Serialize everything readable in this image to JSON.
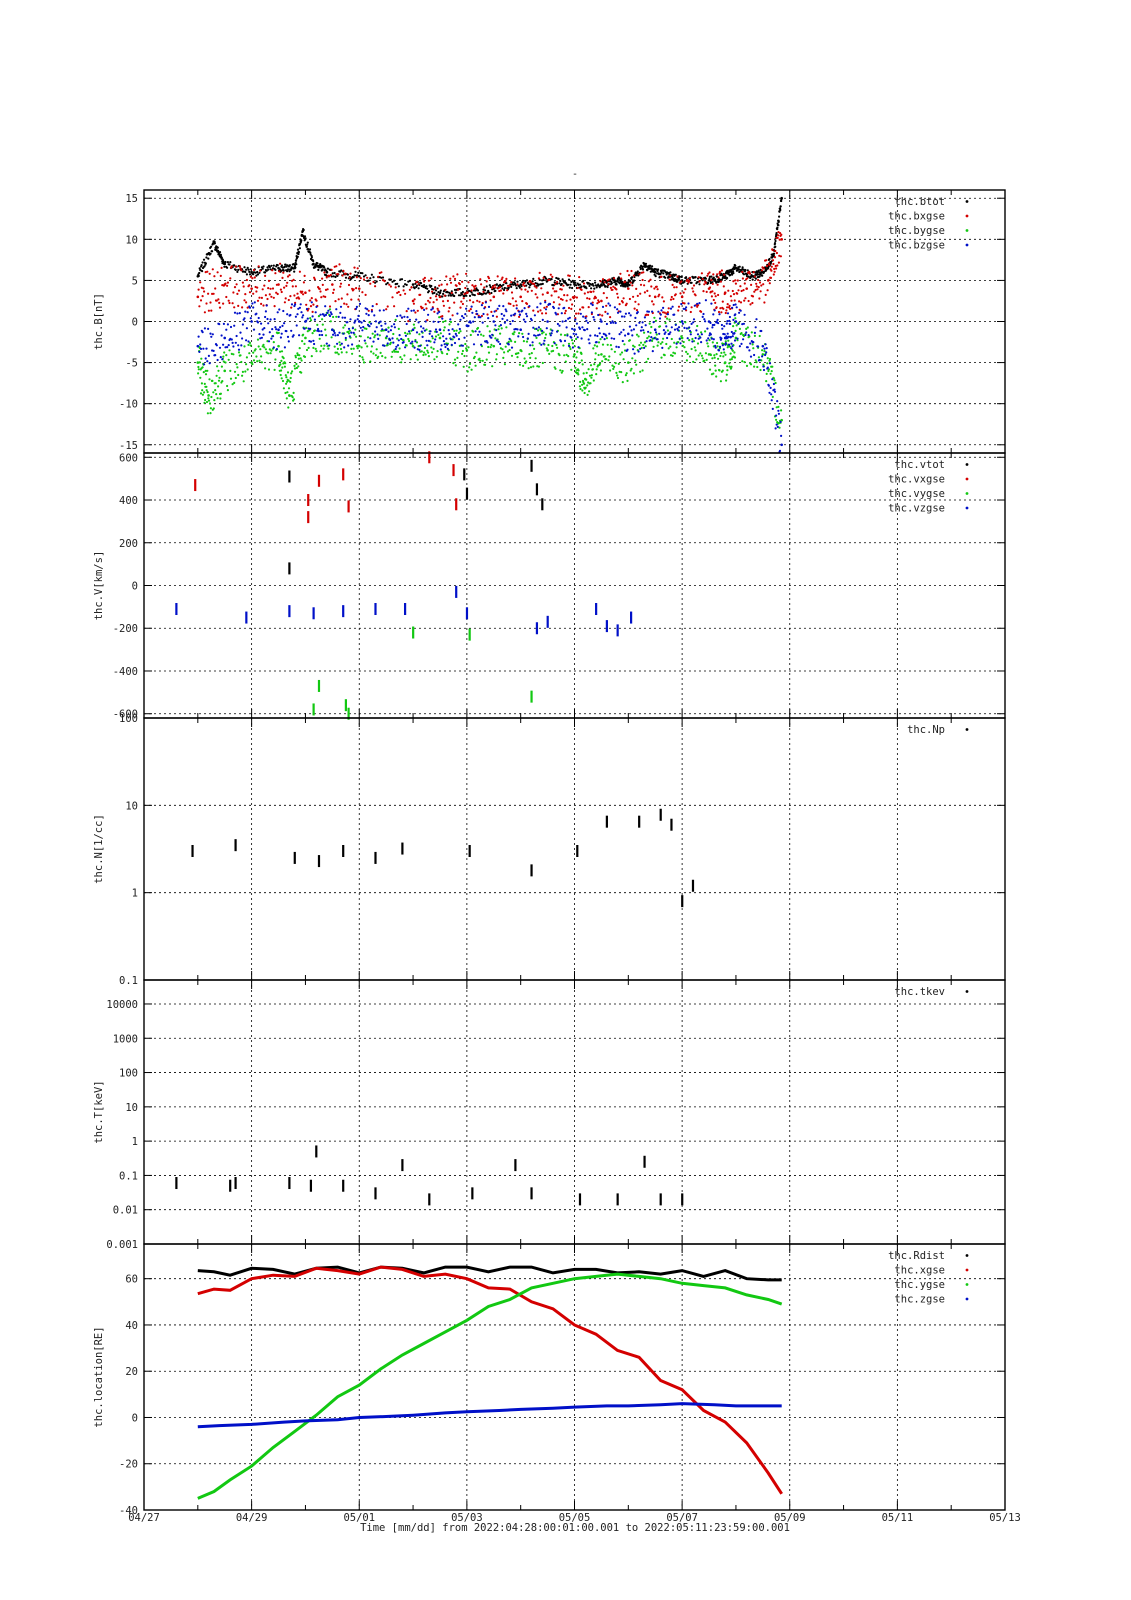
{
  "page": {
    "title": "-"
  },
  "colors": {
    "black": "#000000",
    "red": "#d40000",
    "green": "#12c812",
    "blue": "#0010c8",
    "grid": "#000000"
  },
  "x_axis": {
    "label": "Time [mm/dd]  from 2022:04:28:00:01:00.001  to  2022:05:11:23:59:00.001",
    "ticks": [
      "04/27",
      "04/29",
      "05/01",
      "05/03",
      "05/05",
      "05/07",
      "05/09",
      "05/11",
      "05/13"
    ]
  },
  "chart_data": [
    {
      "type": "scatter",
      "ylabel": "thc.B[nT]",
      "ylim": [
        -16,
        16
      ],
      "yticks": [
        "15",
        "10",
        "5",
        "0",
        "-5",
        "-10",
        "-15"
      ],
      "yticks_values": [
        15,
        10,
        5,
        0,
        -5,
        -10,
        -15
      ],
      "series": [
        {
          "name": "thc.btot",
          "color": "black",
          "x": [
            1.0,
            1.3,
            1.5,
            2.0,
            2.5,
            2.8,
            2.95,
            3.15,
            3.4,
            4.0,
            5.0,
            5.5,
            6.0,
            6.5,
            7.0,
            7.5,
            8.0,
            8.5,
            8.8,
            9.0,
            9.3,
            9.5,
            9.8,
            10.0,
            10.5,
            10.8,
            11.0,
            11.3,
            11.5,
            11.7,
            11.85
          ],
          "y": [
            5.5,
            9.5,
            7,
            6,
            6.5,
            6.5,
            11,
            7,
            6,
            5.5,
            4.5,
            3.5,
            3.5,
            4,
            4.5,
            5,
            4.5,
            4.5,
            5,
            4.5,
            7,
            6,
            5.5,
            5,
            5,
            5.5,
            6.5,
            5.5,
            6,
            8,
            15
          ]
        },
        {
          "name": "thc.bxgse",
          "color": "red",
          "x": [
            1.0,
            1.5,
            2.0,
            2.5,
            3.0,
            3.5,
            4.0,
            5.0,
            5.5,
            6.0,
            6.5,
            7.0,
            7.5,
            8.0,
            8.5,
            9.0,
            9.5,
            10.0,
            10.5,
            10.8,
            11.2,
            11.6,
            11.85
          ],
          "y": [
            3,
            4.5,
            4,
            4.5,
            3.5,
            4.5,
            4,
            2.5,
            3,
            3.5,
            3,
            3,
            3.5,
            3,
            2.5,
            4,
            3,
            3,
            4,
            3.5,
            4,
            5,
            10
          ]
        },
        {
          "name": "thc.bygse",
          "color": "green",
          "x": [
            1.0,
            1.2,
            1.5,
            2.0,
            2.5,
            2.7,
            3.0,
            3.5,
            4.0,
            4.5,
            5.0,
            5.5,
            6.0,
            6.5,
            7.0,
            7.5,
            8.0,
            8.2,
            8.5,
            9.0,
            9.5,
            10.0,
            10.5,
            10.8,
            11.0,
            11.5,
            11.85
          ],
          "y": [
            -5,
            -9,
            -6,
            -5,
            -3,
            -9,
            -2,
            -1,
            -3,
            -2,
            -3,
            -2,
            -3.5,
            -3,
            -3.5,
            -3.5,
            -4,
            -7,
            -4,
            -5,
            -2,
            -2,
            -4,
            -5,
            -2,
            -4,
            -12
          ]
        },
        {
          "name": "thc.bzgse",
          "color": "blue",
          "x": [
            1.0,
            1.5,
            2.0,
            2.5,
            3.0,
            3.5,
            4.0,
            4.5,
            5.0,
            5.5,
            6.0,
            6.5,
            7.0,
            7.5,
            8.0,
            8.5,
            9.0,
            9.5,
            10.0,
            10.5,
            10.8,
            11.0,
            11.5,
            11.85
          ],
          "y": [
            -3,
            -2,
            0,
            -1,
            0,
            -1,
            0,
            -1,
            -1,
            -1,
            -0.5,
            0,
            -1,
            0,
            -1,
            0,
            -1.5,
            -1,
            0,
            0,
            -2,
            0,
            -3,
            -15
          ]
        }
      ]
    },
    {
      "type": "scatter",
      "ylabel": "thc.V[km/s]",
      "ylim": [
        -620,
        620
      ],
      "yticks": [
        "600",
        "400",
        "200",
        "0",
        "-200",
        "-400",
        "-600"
      ],
      "yticks_values": [
        600,
        400,
        200,
        0,
        -200,
        -400,
        -600
      ],
      "series": [
        {
          "name": "thc.vtot",
          "color": "black",
          "x": [
            2.7,
            2.7,
            5.95,
            6.0,
            7.2,
            7.3,
            7.4
          ],
          "y": [
            510,
            80,
            520,
            430,
            560,
            450,
            380
          ]
        },
        {
          "name": "thc.vxgse",
          "color": "red",
          "x": [
            0.95,
            3.05,
            3.05,
            3.25,
            3.7,
            3.8,
            5.3,
            5.75,
            5.8
          ],
          "y": [
            470,
            400,
            320,
            490,
            520,
            370,
            600,
            540,
            380
          ]
        },
        {
          "name": "thc.vygse",
          "color": "green",
          "x": [
            3.15,
            3.25,
            3.75,
            3.8,
            5.0,
            6.05,
            7.2
          ],
          "y": [
            -580,
            -470,
            -560,
            -600,
            -220,
            -230,
            -520
          ]
        },
        {
          "name": "thc.vzgse",
          "color": "blue",
          "x": [
            0.6,
            1.9,
            2.7,
            3.15,
            3.7,
            4.3,
            4.85,
            5.8,
            6.0,
            7.3,
            7.5,
            8.4,
            8.6,
            8.8,
            9.05
          ],
          "y": [
            -110,
            -150,
            -120,
            -130,
            -120,
            -110,
            -110,
            -30,
            -130,
            -200,
            -170,
            -110,
            -190,
            -210,
            -150
          ]
        }
      ]
    },
    {
      "type": "scatter",
      "ylabel": "thc.N[1/cc]",
      "ylim": [
        0.1,
        100
      ],
      "yscale": "log",
      "yticks": [
        "100",
        "10",
        "1",
        "0.1"
      ],
      "yticks_values": [
        100,
        10,
        1,
        0.1
      ],
      "series": [
        {
          "name": "thc.Np",
          "color": "black",
          "x": [
            0.9,
            1.7,
            2.8,
            3.25,
            3.7,
            4.3,
            4.8,
            6.05,
            7.2,
            8.05,
            8.6,
            9.2,
            9.6,
            9.8,
            10.0,
            10.2
          ],
          "y": [
            3,
            3.5,
            2.5,
            2.3,
            3.0,
            2.5,
            3.2,
            3.0,
            1.8,
            3.0,
            6.5,
            6.5,
            7.8,
            6.0,
            0.8,
            1.2
          ]
        }
      ]
    },
    {
      "type": "scatter",
      "ylabel": "thc.T[keV]",
      "ylim": [
        0.001,
        50000
      ],
      "yscale": "log",
      "yticks": [
        "10000",
        "1000",
        "100",
        "10",
        "1",
        "0.1",
        "0.01",
        "0.001"
      ],
      "yticks_values": [
        10000,
        1000,
        100,
        10,
        1,
        0.1,
        0.01,
        0.001
      ],
      "series": [
        {
          "name": "thc.tkev",
          "color": "black",
          "x": [
            0.6,
            1.6,
            1.7,
            2.7,
            3.1,
            3.2,
            3.7,
            4.3,
            4.8,
            5.3,
            6.1,
            6.9,
            7.2,
            8.1,
            8.8,
            9.3,
            9.6,
            10.0
          ],
          "y": [
            0.06,
            0.05,
            0.06,
            0.06,
            0.05,
            0.5,
            0.05,
            0.03,
            0.2,
            0.02,
            0.03,
            0.2,
            0.03,
            0.02,
            0.02,
            0.25,
            0.02,
            0.02
          ]
        }
      ]
    },
    {
      "type": "line",
      "ylabel": "thc.location[RE]",
      "ylim": [
        -40,
        75
      ],
      "yticks": [
        "60",
        "40",
        "20",
        "0",
        "-20",
        "-40"
      ],
      "yticks_values": [
        60,
        40,
        20,
        0,
        -20,
        -40
      ],
      "series": [
        {
          "name": "thc.Rdist",
          "color": "black",
          "x": [
            1.0,
            1.3,
            1.6,
            2.0,
            2.4,
            2.8,
            3.2,
            3.6,
            4.0,
            4.4,
            4.8,
            5.2,
            5.6,
            6.0,
            6.4,
            6.8,
            7.2,
            7.6,
            8.0,
            8.4,
            8.8,
            9.2,
            9.6,
            10.0,
            10.4,
            10.8,
            11.2,
            11.6,
            11.85
          ],
          "y": [
            63.5,
            63,
            61.5,
            64.5,
            64,
            62,
            64.5,
            65,
            62.5,
            65,
            64.5,
            62.5,
            65,
            65,
            63,
            65,
            65,
            62.5,
            64,
            64,
            62.5,
            63,
            62,
            63.5,
            61,
            63.5,
            60,
            59.5,
            59.5
          ]
        },
        {
          "name": "thc.xgse",
          "color": "red",
          "x": [
            1.0,
            1.3,
            1.6,
            2.0,
            2.4,
            2.8,
            3.2,
            3.6,
            4.0,
            4.4,
            4.8,
            5.2,
            5.6,
            6.0,
            6.4,
            6.8,
            7.2,
            7.6,
            8.0,
            8.4,
            8.8,
            9.2,
            9.6,
            10.0,
            10.4,
            10.8,
            11.2,
            11.6,
            11.85
          ],
          "y": [
            53.5,
            55.5,
            55,
            60,
            61.5,
            61,
            64.5,
            63.5,
            62,
            65,
            64,
            61,
            62,
            60,
            56,
            55.5,
            50,
            47,
            40,
            36,
            29,
            26,
            16,
            12,
            3,
            -2,
            -11,
            -24,
            -33
          ]
        },
        {
          "name": "thc.ygse",
          "color": "green",
          "x": [
            1.0,
            1.3,
            1.6,
            2.0,
            2.4,
            2.8,
            3.2,
            3.6,
            4.0,
            4.4,
            4.8,
            5.2,
            5.6,
            6.0,
            6.4,
            6.8,
            7.2,
            7.6,
            8.0,
            8.4,
            8.8,
            9.2,
            9.6,
            10.0,
            10.4,
            10.8,
            11.2,
            11.6,
            11.85
          ],
          "y": [
            -35,
            -32,
            -27,
            -21,
            -13,
            -6,
            1,
            9,
            14,
            21,
            27,
            32,
            37,
            42,
            48,
            51,
            56,
            58,
            60,
            61,
            62,
            61,
            60,
            58,
            57,
            56,
            53,
            51,
            49
          ]
        },
        {
          "name": "thc.zgse",
          "color": "blue",
          "x": [
            1.0,
            1.4,
            2.0,
            2.6,
            3.0,
            3.6,
            4.0,
            4.6,
            5.0,
            5.6,
            6.0,
            6.6,
            7.0,
            7.6,
            8.0,
            8.6,
            9.0,
            9.6,
            10.0,
            10.6,
            11.0,
            11.6,
            11.85
          ],
          "y": [
            -4,
            -3.5,
            -3,
            -2,
            -1.5,
            -1,
            0,
            0.5,
            1,
            2,
            2.5,
            3,
            3.5,
            4,
            4.5,
            5,
            5,
            5.5,
            6,
            5.5,
            5,
            5,
            5
          ]
        }
      ]
    }
  ]
}
